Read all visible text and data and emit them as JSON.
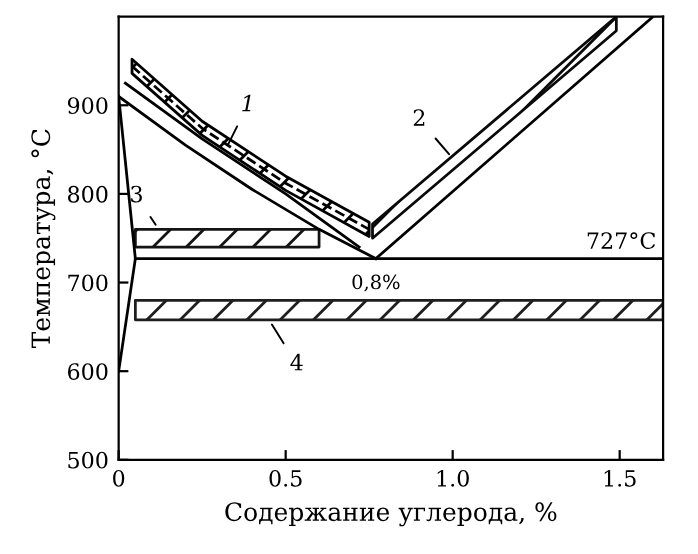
{
  "chart_data": {
    "type": "line",
    "xlabel": "Содержание углерода, %",
    "ylabel": "Температура, °C",
    "xlim": [
      0,
      1.63
    ],
    "ylim": [
      500,
      1000
    ],
    "xticks": [
      0,
      {
        "value": 0.5,
        "label": "0.5"
      },
      {
        "value": 1.0,
        "label": "1.0"
      },
      {
        "value": 1.5,
        "label": "1.5"
      }
    ],
    "yticks": [
      500,
      600,
      700,
      800,
      900
    ],
    "grid": false,
    "legend": false,
    "marker": "none",
    "series": [
      {
        "color": "#000000",
        "line_style": "solid",
        "x": [
          0,
          0.2,
          0.4,
          0.6,
          0.77
        ],
        "values": [
          910,
          855,
          805,
          760,
          727
        ]
      },
      {
        "color": "#000000",
        "line_style": "solid",
        "x": [
          0.77,
          1.6
        ],
        "values": [
          727,
          1000
        ]
      },
      {
        "color": "#000000",
        "line_style": "solid",
        "x": [
          0,
          0.05,
          0
        ],
        "values": [
          910,
          727,
          600
        ]
      },
      {
        "color": "#000000",
        "line_style": "solid",
        "x": [
          0.02,
          0.25,
          0.5,
          0.72
        ],
        "values": [
          925,
          862,
          800,
          740
        ]
      },
      {
        "color": "#000000",
        "line_style": "dashed",
        "x": [
          0.04,
          0.25,
          0.5,
          0.75
        ],
        "values": [
          944,
          874,
          812,
          760
        ],
        "lower": [
          936,
          866,
          804,
          752
        ],
        "upper": [
          952,
          882,
          820,
          768
        ]
      },
      {
        "color": "#0a0a0a",
        "line_style": "solid",
        "x": [
          0.76,
          1.49
        ],
        "values": [
          null,
          null
        ],
        "lower": [
          750,
          984
        ],
        "upper": [
          766,
          1000
        ]
      },
      {
        "color": "#141414",
        "line_style": "solid",
        "x": [
          0.05,
          0.6
        ],
        "values": [
          null,
          null
        ],
        "lower": [
          740,
          740
        ],
        "upper": [
          760,
          760
        ]
      },
      {
        "color": "#1e1e1e",
        "line_style": "solid",
        "x": [
          0.05,
          1.63
        ],
        "values": [
          null,
          null
        ],
        "lower": [
          658,
          658
        ],
        "upper": [
          680,
          680
        ]
      }
    ],
    "ref_lines": [
      {
        "axis": "y",
        "value": 727,
        "label": "727°C",
        "color": "#000000",
        "line_style": "solid"
      }
    ],
    "annotations": [
      {
        "text": "1",
        "x": 0.32,
        "y": 850
      },
      {
        "text": "2",
        "x": 1.0,
        "y": 840
      },
      {
        "text": "3",
        "x": 0.12,
        "y": 760
      },
      {
        "text": "4",
        "x": 0.45,
        "y": 658
      },
      {
        "text": "0,8%",
        "x": 0.77,
        "y": 727
      }
    ]
  }
}
